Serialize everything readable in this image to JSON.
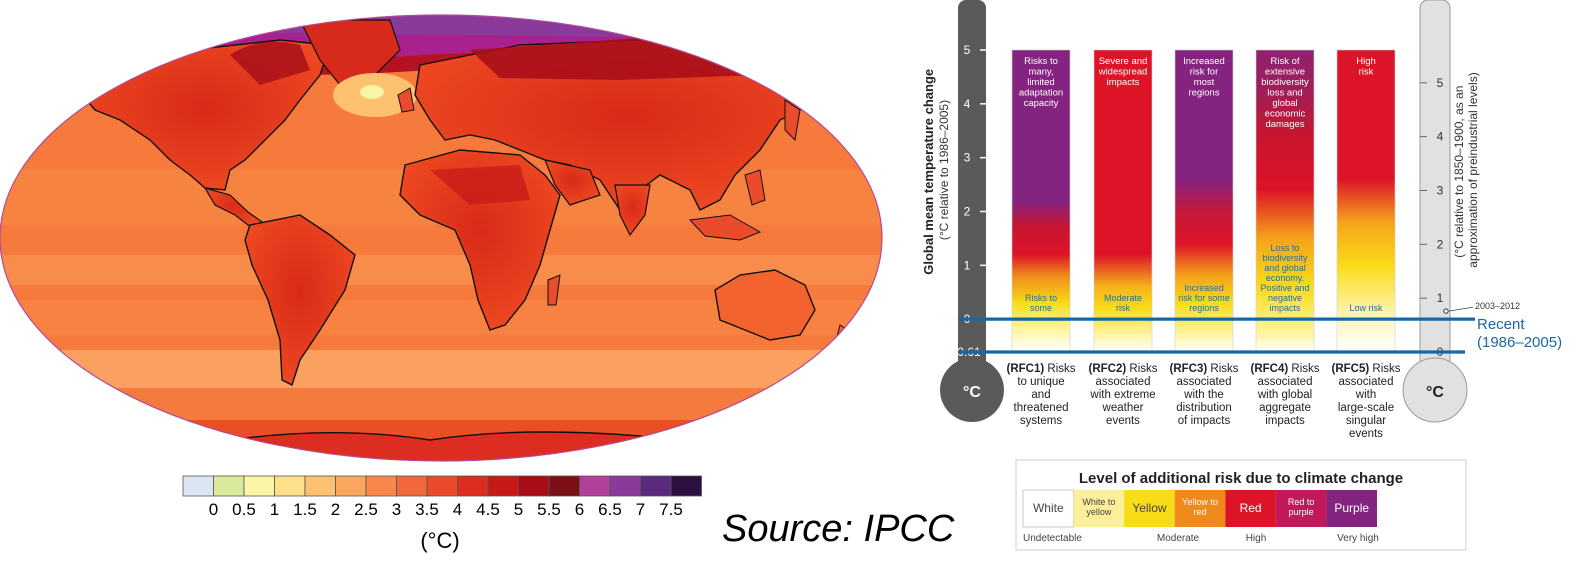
{
  "colors": {
    "white": "#ffffff",
    "yellow": "#f8dc18",
    "red": "#dd1428",
    "purple": "#852380",
    "blue_line": "#1767a6",
    "dark_thermometer": "#5a5a5a",
    "light_thermometer": "#e1e1e1",
    "ocean_base": "#f67a3c",
    "land_base": "#e8391c"
  },
  "map": {
    "colorbar": {
      "tick_labels": [
        "0",
        "0.5",
        "1",
        "1.5",
        "2",
        "2.5",
        "3",
        "3.5",
        "4",
        "4.5",
        "5",
        "5.5",
        "6",
        "6.5",
        "7",
        "7.5"
      ],
      "unit": "(°C)",
      "bins": [
        {
          "color": "#dce6f2"
        },
        {
          "color": "#d9eb9a"
        },
        {
          "color": "#fbf5a6"
        },
        {
          "color": "#fee08a"
        },
        {
          "color": "#fdc270"
        },
        {
          "color": "#fca55c"
        },
        {
          "color": "#f9874b"
        },
        {
          "color": "#f3683b"
        },
        {
          "color": "#ea4b2c"
        },
        {
          "color": "#dd2d20"
        },
        {
          "color": "#c81919"
        },
        {
          "color": "#a80d15"
        },
        {
          "color": "#7e0f16"
        },
        {
          "color": "#b2409a"
        },
        {
          "color": "#8a3a9a"
        },
        {
          "color": "#5b2a7e"
        },
        {
          "color": "#2e1040"
        }
      ]
    }
  },
  "source": "Source: IPCC",
  "chart_data": {
    "type": "bar",
    "left_axis": {
      "label_bold": "Global mean temperature change",
      "label_sub": "(°C relative to 1986–2005)",
      "ticks": [
        -0.61,
        0,
        1,
        2,
        3,
        4,
        5
      ],
      "tick_labels": [
        "-0.61",
        "0",
        "1",
        "2",
        "3",
        "4",
        "5"
      ],
      "thermometer_symbol": "°C"
    },
    "right_axis": {
      "label_line1": "(°C relative to 1850–1900, as an",
      "label_line2": "approximation of preindustrial levels)",
      "ticks": [
        0,
        1,
        2,
        3,
        4,
        5
      ],
      "tick_labels": [
        "0",
        "1",
        "2",
        "3",
        "4",
        "5"
      ],
      "offset_to_left_axis": -0.61,
      "marker_label": "2003–2012",
      "marker_value_left_axis": 0.15,
      "thermometer_symbol": "°C"
    },
    "ylim": [
      -0.61,
      5
    ],
    "recent_line": {
      "value": 0,
      "line1": "Recent",
      "line2": "(1986–2005)"
    },
    "preindustrial_line": {
      "value": -0.61
    },
    "categories": [
      "RFC1",
      "RFC2",
      "RFC3",
      "RFC4",
      "RFC5"
    ],
    "bars": [
      {
        "code": "(RFC1)",
        "desc_first": "Risks",
        "desc_rest": [
          "to unique",
          "and",
          "threatened",
          "systems"
        ],
        "top_label": [
          "Risks to",
          "many,",
          "limited",
          "adaptation",
          "capacity"
        ],
        "low_label": [
          "Risks to",
          "some"
        ],
        "stops": [
          {
            "t": -0.61,
            "color": "#ffffff"
          },
          {
            "t": -0.2,
            "color": "#fff6a8"
          },
          {
            "t": 0.3,
            "color": "#f8dc18"
          },
          {
            "t": 0.8,
            "color": "#f08c1a"
          },
          {
            "t": 1.2,
            "color": "#dd1428"
          },
          {
            "t": 1.7,
            "color": "#c91530"
          },
          {
            "t": 2.2,
            "color": "#852380"
          },
          {
            "t": 5,
            "color": "#852380"
          }
        ]
      },
      {
        "code": "(RFC2)",
        "desc_first": "Risks",
        "desc_rest": [
          "associated",
          "with extreme",
          "weather",
          "events"
        ],
        "top_label": [
          "Severe and",
          "widespread",
          "impacts"
        ],
        "low_label": [
          "Moderate",
          "risk"
        ],
        "stops": [
          {
            "t": -0.61,
            "color": "#ffffff"
          },
          {
            "t": -0.3,
            "color": "#fff6a8"
          },
          {
            "t": 0.2,
            "color": "#f8dc18"
          },
          {
            "t": 0.6,
            "color": "#f5b31a"
          },
          {
            "t": 1.2,
            "color": "#dd1428"
          },
          {
            "t": 5,
            "color": "#dd1428"
          }
        ]
      },
      {
        "code": "(RFC3)",
        "desc_first": "Risks",
        "desc_rest": [
          "associated",
          "with the",
          "distribution",
          "of impacts"
        ],
        "top_label": [
          "Increased",
          "risk for",
          "most",
          "regions"
        ],
        "low_label": [
          "Increased",
          "risk for some",
          "regions"
        ],
        "stops": [
          {
            "t": -0.61,
            "color": "#ffffff"
          },
          {
            "t": -0.3,
            "color": "#fff6a8"
          },
          {
            "t": 0.3,
            "color": "#f8dc18"
          },
          {
            "t": 0.8,
            "color": "#f5a31a"
          },
          {
            "t": 1.4,
            "color": "#dd1428"
          },
          {
            "t": 2.0,
            "color": "#c41a3a"
          },
          {
            "t": 2.6,
            "color": "#852380"
          },
          {
            "t": 5,
            "color": "#852380"
          }
        ]
      },
      {
        "code": "(RFC4)",
        "desc_first": "Risks",
        "desc_rest": [
          "associated",
          "with global",
          "aggregate",
          "impacts"
        ],
        "top_label": [
          "Risk of",
          "extensive",
          "biodiversity",
          "loss and",
          "global",
          "economic",
          "damages"
        ],
        "low_label": [
          "Loss to",
          "biodiversity",
          "and global",
          "economy.",
          "Positive and",
          "negative",
          "impacts"
        ],
        "stops": [
          {
            "t": -0.61,
            "color": "#ffffff"
          },
          {
            "t": -0.3,
            "color": "#fff6a8"
          },
          {
            "t": 0.6,
            "color": "#f8dc18"
          },
          {
            "t": 1.5,
            "color": "#f5a31a"
          },
          {
            "t": 2.4,
            "color": "#dd1428"
          },
          {
            "t": 3.4,
            "color": "#c81530"
          },
          {
            "t": 4.2,
            "color": "#a21e55"
          },
          {
            "t": 5,
            "color": "#8e2170"
          }
        ]
      },
      {
        "code": "(RFC5)",
        "desc_first": "Risks",
        "desc_rest": [
          "associated",
          "with",
          "large-scale",
          "singular",
          "events"
        ],
        "top_label": [
          "High",
          "risk"
        ],
        "low_label": [
          "Low risk"
        ],
        "stops": [
          {
            "t": -0.61,
            "color": "#ffffff"
          },
          {
            "t": 0.0,
            "color": "#fff6c0"
          },
          {
            "t": 1.0,
            "color": "#f8dc18"
          },
          {
            "t": 1.8,
            "color": "#f5a31a"
          },
          {
            "t": 2.6,
            "color": "#dd1428"
          },
          {
            "t": 5,
            "color": "#dd1428"
          }
        ]
      }
    ],
    "legend": {
      "title": "Level of additional risk due to climate change",
      "cells": [
        {
          "label": "White",
          "color": "#ffffff"
        },
        {
          "label": "White to yellow",
          "color": "#fbef9a"
        },
        {
          "label": "Yellow",
          "color": "#f8dc18"
        },
        {
          "label": "Yellow to red",
          "color": "#f08a1a"
        },
        {
          "label": "Red",
          "color": "#dd1428"
        },
        {
          "label": "Red to purple",
          "color": "#c1195a"
        },
        {
          "label": "Purple",
          "color": "#852380"
        }
      ],
      "bottom_labels": [
        "Undetectable",
        "Moderate",
        "High",
        "Very high"
      ]
    }
  }
}
